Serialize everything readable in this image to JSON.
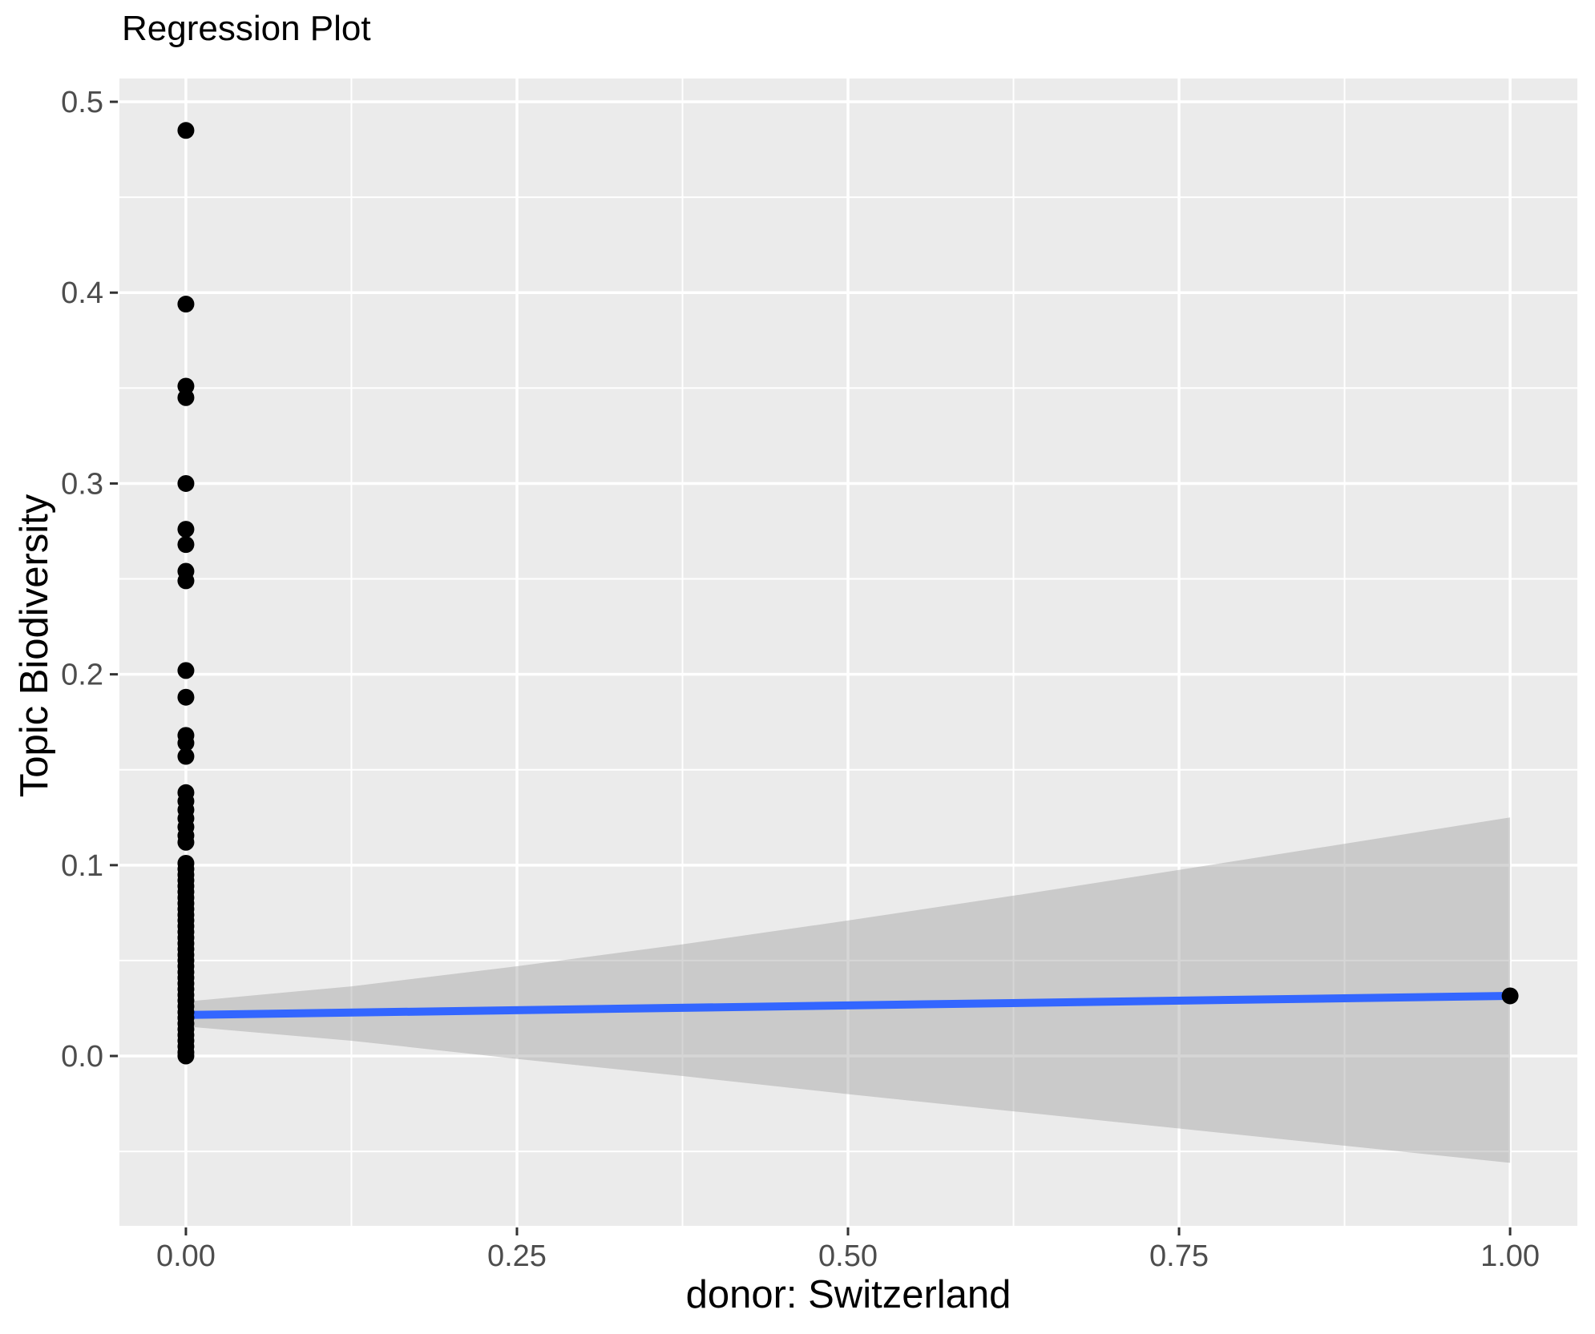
{
  "chart_data": {
    "type": "scatter",
    "title": "Regression Plot",
    "xlabel": "donor: Switzerland",
    "ylabel": "Topic Biodiversity",
    "xlim": [
      -0.0502,
      1.0508
    ],
    "ylim": [
      -0.089,
      0.5122
    ],
    "grid": true,
    "legend_position": "none",
    "x_major_ticks": [
      {
        "value": 0.0,
        "label": "0.00"
      },
      {
        "value": 0.25,
        "label": "0.25"
      },
      {
        "value": 0.5,
        "label": "0.50"
      },
      {
        "value": 0.75,
        "label": "0.75"
      },
      {
        "value": 1.0,
        "label": "1.00"
      }
    ],
    "x_minor_ticks": [
      0.125,
      0.375,
      0.625,
      0.875
    ],
    "y_major_ticks": [
      {
        "value": 0.0,
        "label": "0.0"
      },
      {
        "value": 0.1,
        "label": "0.1"
      },
      {
        "value": 0.2,
        "label": "0.2"
      },
      {
        "value": 0.3,
        "label": "0.3"
      },
      {
        "value": 0.4,
        "label": "0.4"
      },
      {
        "value": 0.5,
        "label": "0.5"
      }
    ],
    "y_minor_ticks": [
      -0.05,
      0.05,
      0.15,
      0.25,
      0.35,
      0.45
    ],
    "points": [
      [
        0,
        0.485
      ],
      [
        0,
        0.394
      ],
      [
        0,
        0.351
      ],
      [
        0,
        0.345
      ],
      [
        0,
        0.3
      ],
      [
        0,
        0.276
      ],
      [
        0,
        0.268
      ],
      [
        0,
        0.254
      ],
      [
        0,
        0.249
      ],
      [
        0,
        0.202
      ],
      [
        0,
        0.188
      ],
      [
        0,
        0.168
      ],
      [
        0,
        0.164
      ],
      [
        0,
        0.157
      ],
      [
        0,
        0.138
      ],
      [
        0,
        0.1335
      ],
      [
        0,
        0.129
      ],
      [
        0,
        0.1245
      ],
      [
        0,
        0.12
      ],
      [
        0,
        0.1155
      ],
      [
        0,
        0.112
      ],
      [
        0,
        0.101
      ],
      [
        0,
        0.098
      ],
      [
        0,
        0.095
      ],
      [
        0,
        0.092
      ],
      [
        0,
        0.089
      ],
      [
        0,
        0.086
      ],
      [
        0,
        0.083
      ],
      [
        0,
        0.08
      ],
      [
        0,
        0.077
      ],
      [
        0,
        0.074
      ],
      [
        0,
        0.071
      ],
      [
        0,
        0.068
      ],
      [
        0,
        0.065
      ],
      [
        0,
        0.062
      ],
      [
        0,
        0.059
      ],
      [
        0,
        0.056
      ],
      [
        0,
        0.053
      ],
      [
        0,
        0.05
      ],
      [
        0,
        0.047
      ],
      [
        0,
        0.044
      ],
      [
        0,
        0.041
      ],
      [
        0,
        0.038
      ],
      [
        0,
        0.035
      ],
      [
        0,
        0.032
      ],
      [
        0,
        0.029
      ],
      [
        0,
        0.026
      ],
      [
        0,
        0.023
      ],
      [
        0,
        0.02
      ],
      [
        0,
        0.017
      ],
      [
        0,
        0.014
      ],
      [
        0,
        0.011
      ],
      [
        0,
        0.008
      ],
      [
        0,
        0.005
      ],
      [
        0,
        0.002
      ],
      [
        0,
        0.0
      ],
      [
        1,
        0.0315
      ]
    ],
    "regression_line": {
      "x": [
        0,
        1
      ],
      "y": [
        0.0215,
        0.0315
      ]
    },
    "confidence_ribbon": {
      "x": [
        0,
        0.125,
        0.25,
        0.375,
        0.5,
        0.625,
        0.75,
        0.875,
        1
      ],
      "upper": [
        0.0285,
        0.0365,
        0.047,
        0.0585,
        0.071,
        0.084,
        0.0975,
        0.1112,
        0.125
      ],
      "lower": [
        0.0155,
        0.008,
        -0.0015,
        -0.0105,
        -0.02,
        -0.029,
        -0.038,
        -0.047,
        -0.056
      ]
    },
    "colors": {
      "panel_bg": "#EBEBEB",
      "grid": "#FFFFFF",
      "point": "#000000",
      "line": "#3366FF",
      "ribbon_fill": "#999999",
      "ribbon_opacity": 0.4,
      "tick_text": "#4D4D4D",
      "tick_mark": "#333333",
      "title_text": "#000000"
    }
  }
}
